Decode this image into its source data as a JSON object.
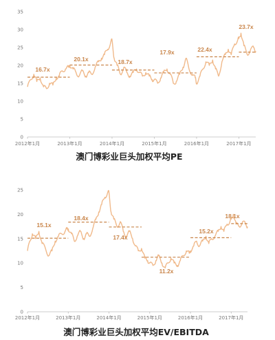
{
  "colors": {
    "line": "#f0b98a",
    "avg": "#c9854a",
    "label": "#c9854a",
    "axis": "#bbbbbb",
    "text": "#222222"
  },
  "chart_data": [
    {
      "type": "line",
      "title": "澳门博彩业巨头加权平均PE",
      "ylim": [
        0,
        35
      ],
      "yticks": [
        "0",
        "5",
        "10",
        "15",
        "20",
        "25",
        "30",
        "35"
      ],
      "xticks": [
        "2012年1月",
        "2013年1月",
        "2014年1月",
        "2015年1月",
        "2016年1月",
        "2017年1月"
      ],
      "xrange": [
        0,
        5.4
      ],
      "series": [
        {
          "values": [
            [
              0.0,
              14.0
            ],
            [
              0.08,
              16.0
            ],
            [
              0.15,
              17.5
            ],
            [
              0.22,
              15.5
            ],
            [
              0.3,
              16.5
            ],
            [
              0.38,
              14.0
            ],
            [
              0.45,
              13.5
            ],
            [
              0.52,
              15.0
            ],
            [
              0.6,
              14.5
            ],
            [
              0.68,
              16.5
            ],
            [
              0.75,
              17.0
            ],
            [
              0.82,
              18.5
            ],
            [
              0.9,
              19.0
            ],
            [
              0.97,
              19.5
            ],
            [
              1.0,
              20.0
            ],
            [
              1.08,
              19.0
            ],
            [
              1.15,
              18.0
            ],
            [
              1.22,
              17.0
            ],
            [
              1.3,
              18.5
            ],
            [
              1.38,
              17.0
            ],
            [
              1.45,
              18.0
            ],
            [
              1.52,
              17.5
            ],
            [
              1.6,
              19.5
            ],
            [
              1.68,
              21.0
            ],
            [
              1.75,
              22.0
            ],
            [
              1.82,
              23.0
            ],
            [
              1.9,
              24.5
            ],
            [
              1.97,
              26.5
            ],
            [
              2.0,
              27.0
            ],
            [
              2.05,
              22.0
            ],
            [
              2.12,
              20.0
            ],
            [
              2.2,
              17.5
            ],
            [
              2.28,
              19.5
            ],
            [
              2.35,
              18.0
            ],
            [
              2.42,
              17.0
            ],
            [
              2.5,
              18.0
            ],
            [
              2.58,
              19.0
            ],
            [
              2.65,
              18.0
            ],
            [
              2.72,
              17.0
            ],
            [
              2.8,
              18.0
            ],
            [
              2.88,
              17.0
            ],
            [
              2.95,
              16.0
            ],
            [
              3.0,
              16.0
            ],
            [
              3.08,
              15.0
            ],
            [
              3.15,
              16.5
            ],
            [
              3.22,
              18.0
            ],
            [
              3.3,
              19.0
            ],
            [
              3.38,
              17.5
            ],
            [
              3.45,
              15.0
            ],
            [
              3.52,
              15.5
            ],
            [
              3.6,
              17.5
            ],
            [
              3.68,
              19.5
            ],
            [
              3.75,
              22.0
            ],
            [
              3.82,
              19.0
            ],
            [
              3.9,
              17.5
            ],
            [
              3.97,
              16.5
            ],
            [
              4.0,
              15.0
            ],
            [
              4.08,
              17.0
            ],
            [
              4.15,
              19.0
            ],
            [
              4.22,
              21.0
            ],
            [
              4.3,
              20.0
            ],
            [
              4.38,
              21.5
            ],
            [
              4.45,
              19.0
            ],
            [
              4.52,
              17.0
            ],
            [
              4.6,
              21.0
            ],
            [
              4.68,
              23.0
            ],
            [
              4.75,
              24.5
            ],
            [
              4.82,
              23.0
            ],
            [
              4.9,
              26.0
            ],
            [
              4.97,
              27.0
            ],
            [
              5.0,
              27.5
            ],
            [
              5.05,
              29.0
            ],
            [
              5.12,
              25.5
            ],
            [
              5.2,
              23.0
            ],
            [
              5.28,
              24.5
            ],
            [
              5.35,
              25.0
            ],
            [
              5.4,
              24.0
            ]
          ]
        }
      ],
      "averages": [
        {
          "label": "16.7x",
          "value": 16.7,
          "from": 0.0,
          "to": 1.0
        },
        {
          "label": "20.1x",
          "value": 20.1,
          "from": 1.0,
          "to": 2.0
        },
        {
          "label": "18.7x",
          "value": 18.7,
          "from": 2.0,
          "to": 3.0
        },
        {
          "label": "17.9x",
          "value": 17.9,
          "from": 3.0,
          "to": 4.0
        },
        {
          "label": "22.4x",
          "value": 22.4,
          "from": 4.0,
          "to": 5.0
        },
        {
          "label": "23.7x",
          "value": 23.7,
          "from": 5.0,
          "to": 5.4
        }
      ]
    },
    {
      "type": "line",
      "title": "澳门博彩业巨头加权平均EV/EBITDA",
      "ylim": [
        0,
        25
      ],
      "yticks": [
        "0",
        "5",
        "10",
        "15",
        "20",
        "25"
      ],
      "xticks": [
        "2012年1月",
        "2013年1月",
        "2014年1月",
        "2015年1月",
        "2016年1月",
        "2017年1月"
      ],
      "xrange": [
        0,
        5.4
      ],
      "series": [
        {
          "values": [
            [
              0.0,
              12.5
            ],
            [
              0.06,
              14.5
            ],
            [
              0.12,
              16.0
            ],
            [
              0.2,
              15.0
            ],
            [
              0.28,
              16.5
            ],
            [
              0.36,
              14.0
            ],
            [
              0.44,
              13.0
            ],
            [
              0.52,
              11.5
            ],
            [
              0.6,
              12.5
            ],
            [
              0.68,
              14.5
            ],
            [
              0.76,
              15.5
            ],
            [
              0.84,
              16.0
            ],
            [
              0.92,
              16.5
            ],
            [
              0.97,
              17.0
            ],
            [
              1.0,
              17.0
            ],
            [
              1.08,
              16.0
            ],
            [
              1.15,
              14.5
            ],
            [
              1.22,
              15.5
            ],
            [
              1.3,
              16.5
            ],
            [
              1.38,
              15.0
            ],
            [
              1.45,
              16.0
            ],
            [
              1.52,
              15.5
            ],
            [
              1.6,
              17.0
            ],
            [
              1.68,
              19.0
            ],
            [
              1.75,
              20.5
            ],
            [
              1.82,
              22.0
            ],
            [
              1.9,
              23.5
            ],
            [
              1.97,
              24.5
            ],
            [
              2.0,
              24.5
            ],
            [
              2.05,
              20.5
            ],
            [
              2.12,
              19.0
            ],
            [
              2.2,
              17.5
            ],
            [
              2.28,
              18.5
            ],
            [
              2.35,
              16.5
            ],
            [
              2.42,
              15.5
            ],
            [
              2.5,
              16.5
            ],
            [
              2.58,
              15.0
            ],
            [
              2.65,
              13.5
            ],
            [
              2.72,
              12.5
            ],
            [
              2.8,
              13.0
            ],
            [
              2.88,
              11.0
            ],
            [
              2.95,
              10.5
            ],
            [
              3.0,
              10.0
            ],
            [
              3.08,
              9.5
            ],
            [
              3.15,
              10.5
            ],
            [
              3.22,
              11.5
            ],
            [
              3.3,
              10.0
            ],
            [
              3.38,
              9.0
            ],
            [
              3.45,
              10.0
            ],
            [
              3.52,
              11.0
            ],
            [
              3.6,
              10.0
            ],
            [
              3.68,
              9.5
            ],
            [
              3.75,
              10.5
            ],
            [
              3.82,
              11.5
            ],
            [
              3.9,
              12.5
            ],
            [
              3.97,
              12.0
            ],
            [
              4.0,
              12.5
            ],
            [
              4.08,
              13.5
            ],
            [
              4.15,
              14.5
            ],
            [
              4.22,
              13.5
            ],
            [
              4.3,
              14.5
            ],
            [
              4.38,
              15.5
            ],
            [
              4.45,
              14.0
            ],
            [
              4.52,
              15.0
            ],
            [
              4.6,
              15.5
            ],
            [
              4.68,
              16.5
            ],
            [
              4.75,
              17.5
            ],
            [
              4.82,
              16.5
            ],
            [
              4.9,
              18.0
            ],
            [
              4.97,
              18.5
            ],
            [
              5.0,
              19.0
            ],
            [
              5.05,
              20.0
            ],
            [
              5.12,
              18.0
            ],
            [
              5.2,
              17.5
            ],
            [
              5.28,
              18.5
            ],
            [
              5.35,
              18.0
            ],
            [
              5.4,
              17.5
            ]
          ]
        }
      ],
      "averages": [
        {
          "label": "15.1x",
          "value": 15.1,
          "from": 0.0,
          "to": 1.0
        },
        {
          "label": "18.4x",
          "value": 18.4,
          "from": 1.0,
          "to": 2.0
        },
        {
          "label": "17.4x",
          "value": 17.4,
          "from": 2.0,
          "to": 2.8
        },
        {
          "label": "11.2x",
          "value": 11.2,
          "from": 2.8,
          "to": 4.0
        },
        {
          "label": "15.2x",
          "value": 15.2,
          "from": 4.0,
          "to": 5.0
        },
        {
          "label": "18.1x",
          "value": 18.1,
          "from": 5.0,
          "to": 5.4
        }
      ]
    }
  ]
}
